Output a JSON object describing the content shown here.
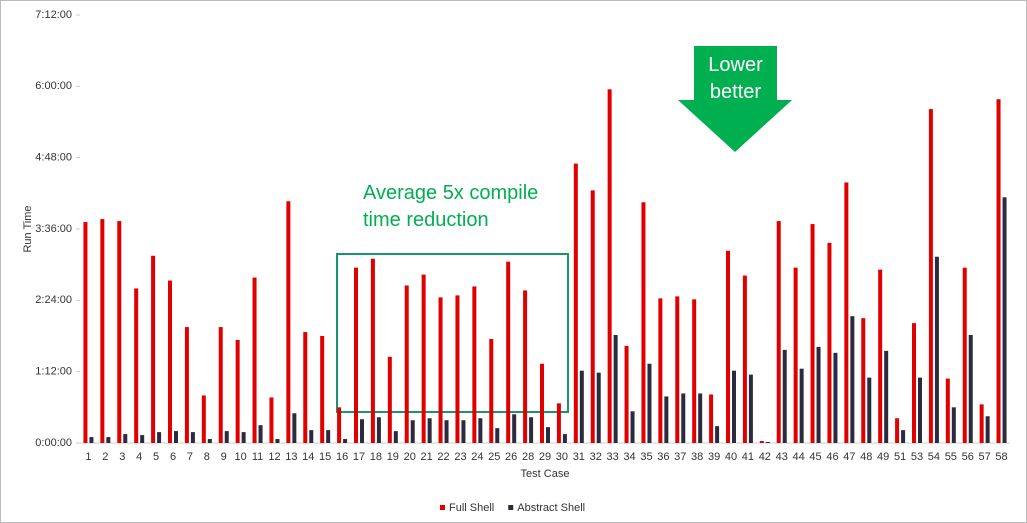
{
  "chart_data": {
    "type": "bar",
    "x_label": "Test Case",
    "y_label": "Run Time",
    "categories": [
      "1",
      "2",
      "3",
      "4",
      "5",
      "6",
      "7",
      "8",
      "9",
      "10",
      "11",
      "12",
      "13",
      "14",
      "15",
      "16",
      "17",
      "18",
      "19",
      "20",
      "21",
      "22",
      "23",
      "24",
      "25",
      "26",
      "28",
      "29",
      "30",
      "31",
      "32",
      "33",
      "34",
      "35",
      "36",
      "37",
      "38",
      "39",
      "40",
      "41",
      "42",
      "43",
      "44",
      "45",
      "46",
      "47",
      "48",
      "49",
      "51",
      "53",
      "54",
      "55",
      "56",
      "57",
      "58"
    ],
    "series": [
      {
        "name": "Full Shell",
        "color": "#e00000",
        "values": [
          223,
          226,
          224,
          156,
          189,
          164,
          117,
          48,
          117,
          104,
          167,
          46,
          244,
          112,
          108,
          36,
          177,
          186,
          87,
          159,
          170,
          147,
          149,
          158,
          105,
          183,
          154,
          80,
          40,
          282,
          255,
          357,
          98,
          243,
          146,
          148,
          145,
          49,
          194,
          169,
          2,
          224,
          177,
          221,
          202,
          263,
          126,
          175,
          25,
          121,
          337,
          65,
          177,
          39,
          347
        ]
      },
      {
        "name": "Abstract Shell",
        "color": "#2b2b3f",
        "values": [
          6,
          6,
          9,
          8,
          11,
          12,
          11,
          4,
          12,
          11,
          18,
          4,
          30,
          13,
          13,
          4,
          24,
          26,
          12,
          23,
          25,
          23,
          23,
          25,
          15,
          29,
          26,
          16,
          9,
          73,
          71,
          109,
          32,
          80,
          47,
          50,
          50,
          17,
          73,
          69,
          1,
          94,
          75,
          97,
          91,
          128,
          66,
          93,
          13,
          66,
          188,
          36,
          109,
          27,
          248
        ]
      }
    ],
    "ylim": [
      0,
      432
    ],
    "yticks": [
      {
        "value": 0,
        "label": "0:00:00"
      },
      {
        "value": 72,
        "label": "1:12:00"
      },
      {
        "value": 144,
        "label": "2:24:00"
      },
      {
        "value": 216,
        "label": "3:36:00"
      },
      {
        "value": 288,
        "label": "4:48:00"
      },
      {
        "value": 360,
        "label": "6:00:00"
      },
      {
        "value": 432,
        "label": "7:12:00"
      }
    ],
    "grid": false,
    "legend": "bottom",
    "annotations": [
      "Average 5x compile time reduction",
      "Lower better"
    ]
  }
}
